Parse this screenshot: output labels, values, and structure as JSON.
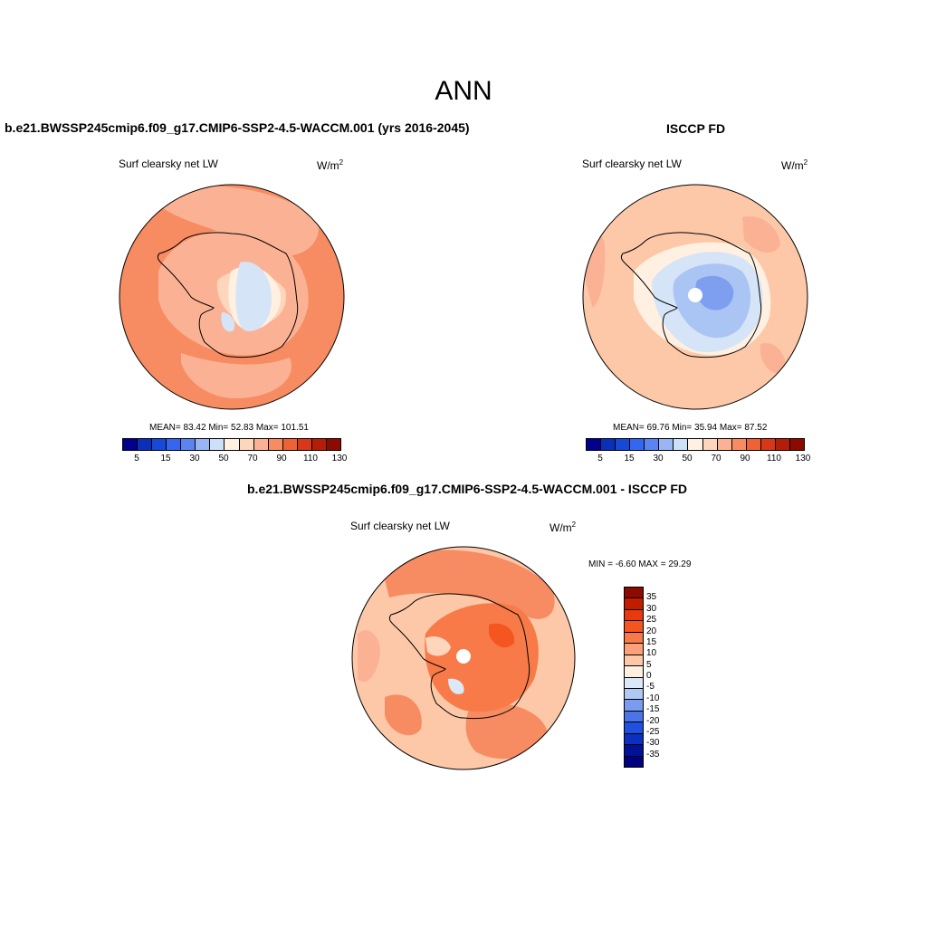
{
  "title": "ANN",
  "panels": {
    "model": {
      "title": "b.e21.BWSSP245cmip6.f09_g17.CMIP6-SSP2-4.5-WACCM.001 (yrs 2016-2045)",
      "variable": "Surf clearsky net LW",
      "units": "W/m",
      "units_exp": "2",
      "stats": "MEAN=  83.42  Min=  52.83  Max= 101.51",
      "mean": 83.42,
      "min": 52.83,
      "max": 101.51
    },
    "obs": {
      "title": "ISCCP FD",
      "variable": "Surf clearsky net LW",
      "units": "W/m",
      "units_exp": "2",
      "stats": "MEAN=  69.76  Min=  35.94  Max=  87.52",
      "mean": 69.76,
      "min": 35.94,
      "max": 87.52
    },
    "diff": {
      "title": "b.e21.BWSSP245cmip6.f09_g17.CMIP6-SSP2-4.5-WACCM.001 - ISCCP FD",
      "variable": "Surf clearsky net LW",
      "units": "W/m",
      "units_exp": "2",
      "stats": "MIN =  -6.60 MAX =  29.29",
      "min": -6.6,
      "max": 29.29
    }
  },
  "colorbar_abs": {
    "colors": [
      "#00008c",
      "#0a2fb8",
      "#1848d8",
      "#3466f0",
      "#5c84f0",
      "#9ab5f4",
      "#cce0f8",
      "#fff0e2",
      "#fdd6bc",
      "#fbb294",
      "#f78c62",
      "#ef6236",
      "#d83818",
      "#b41e08",
      "#8c0a00"
    ],
    "labels": [
      "5",
      "15",
      "30",
      "50",
      "70",
      "90",
      "110",
      "130"
    ]
  },
  "colorbar_diff": {
    "colors_top_to_bottom": [
      "#8c0a00",
      "#c21c00",
      "#e83a0e",
      "#f5551e",
      "#f77a48",
      "#fba07a",
      "#fdc8a8",
      "#fff0e2",
      "#dbe8f8",
      "#b0c8f4",
      "#7a9cf0",
      "#4a74e8",
      "#2050e0",
      "#0a30c0",
      "#00129a",
      "#000080"
    ],
    "labels_top_to_bottom": [
      "35",
      "30",
      "25",
      "20",
      "15",
      "10",
      "5",
      "0",
      "-5",
      "-10",
      "-15",
      "-20",
      "-25",
      "-30",
      "-35"
    ]
  }
}
